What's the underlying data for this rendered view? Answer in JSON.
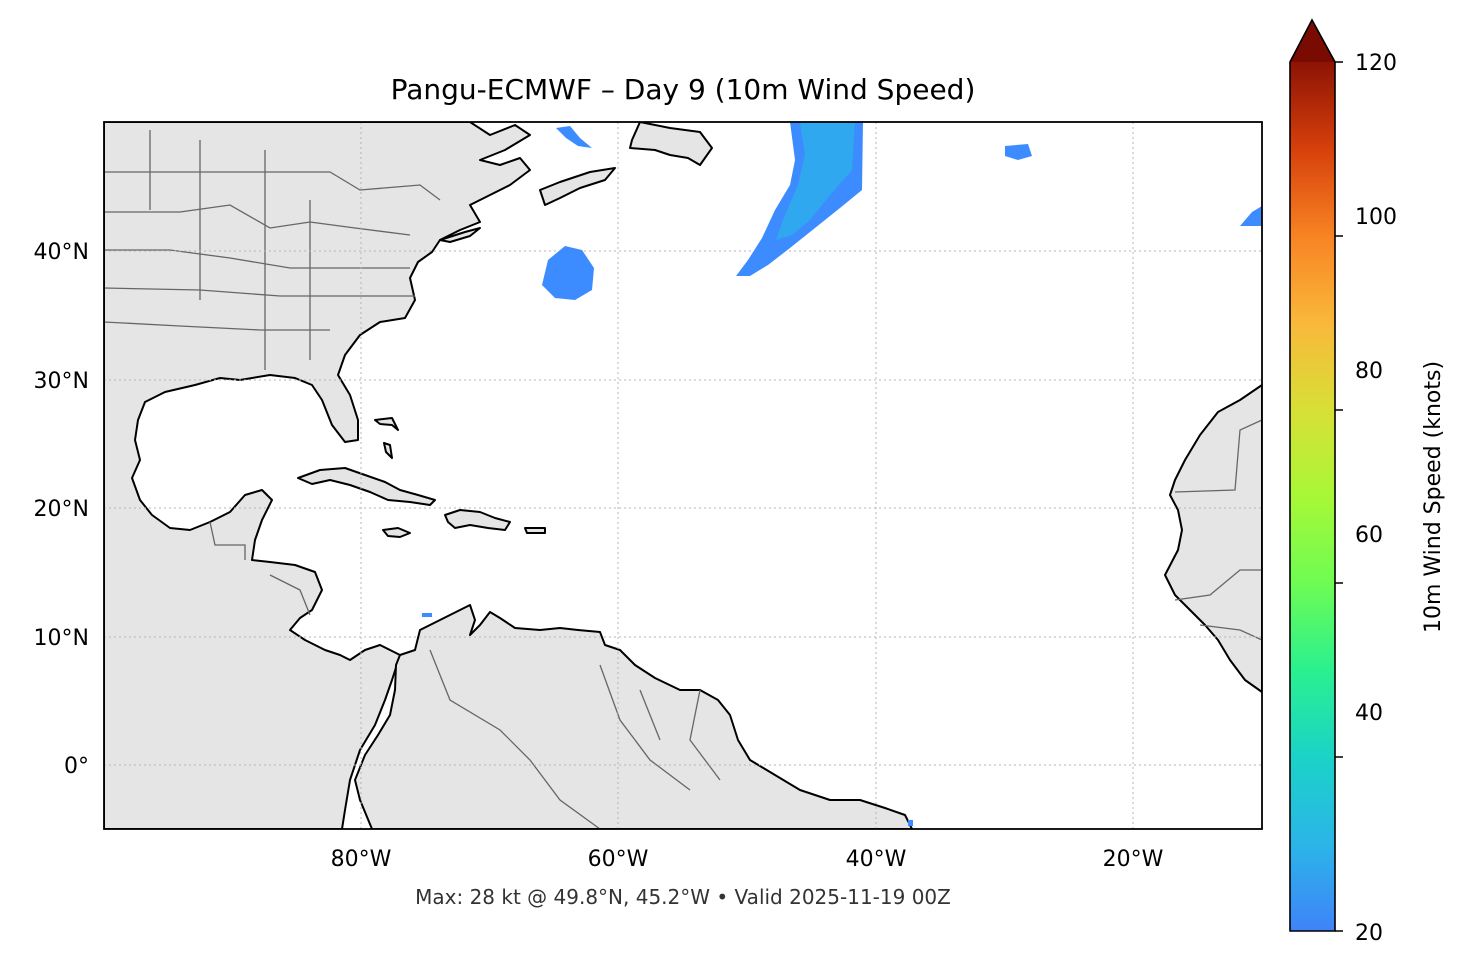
{
  "title": "Pangu-ECMWF – Day 9 (10m Wind Speed)",
  "footer": "Max: 28 kt @ 49.8°N, 45.2°W • Valid 2025-11-19 00Z",
  "map": {
    "lat_labels": [
      "40°N",
      "30°N",
      "20°N",
      "10°N",
      "0°"
    ],
    "lon_labels": [
      "80°W",
      "60°W",
      "40°W",
      "20°W"
    ],
    "extent": {
      "lon_min": -100,
      "lon_max": -10,
      "lat_min": -5,
      "lat_max": 50
    },
    "land_color": "#e5e5e5",
    "gridlines": true
  },
  "colorbar": {
    "label": "10m Wind Speed (knots)",
    "ticks": [
      "120",
      "100",
      "80",
      "60",
      "40",
      "20"
    ],
    "min": 20,
    "max": 120,
    "extend": "max",
    "colormap": "turbo"
  },
  "wind_features": [
    {
      "name": "jet-band",
      "peak_kt": 28
    },
    {
      "name": "nw-atlantic-blob",
      "peak_kt": 22
    }
  ]
}
